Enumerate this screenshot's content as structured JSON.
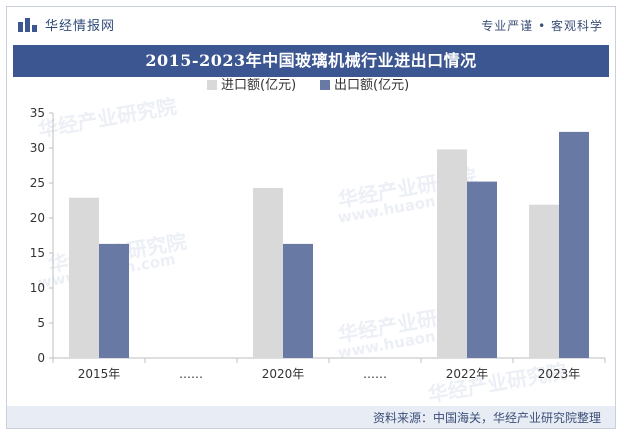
{
  "header": {
    "brand": "华经情报网",
    "slogan": "专业严谨 • 客观科学"
  },
  "title_bar": {
    "title": "2015-2023年中国玻璃机械行业进出口情况"
  },
  "footer": {
    "source": "资料来源：中国海关，华经产业研究院整理"
  },
  "watermark": {
    "text_cn": "华经产业研究院",
    "text_en": "www.huaon.com"
  },
  "colors": {
    "brand": "#3b5690",
    "import": "#d9d9d9",
    "export": "#6879a3"
  },
  "chart_data": {
    "type": "bar",
    "title": "2015-2023年中国玻璃机械行业进出口情况",
    "categories": [
      "2015年",
      "……",
      "2020年",
      "……",
      "2022年",
      "2023年"
    ],
    "series": [
      {
        "name": "进口额(亿元)",
        "values": [
          22.9,
          null,
          24.3,
          null,
          29.8,
          21.9
        ]
      },
      {
        "name": "出口额(亿元)",
        "values": [
          16.3,
          null,
          16.3,
          null,
          25.2,
          32.3
        ]
      }
    ],
    "ylim": [
      0,
      35
    ],
    "yticks": [
      0,
      5,
      10,
      15,
      20,
      25,
      30,
      35
    ],
    "legend_position": "top-center",
    "grid": false
  }
}
